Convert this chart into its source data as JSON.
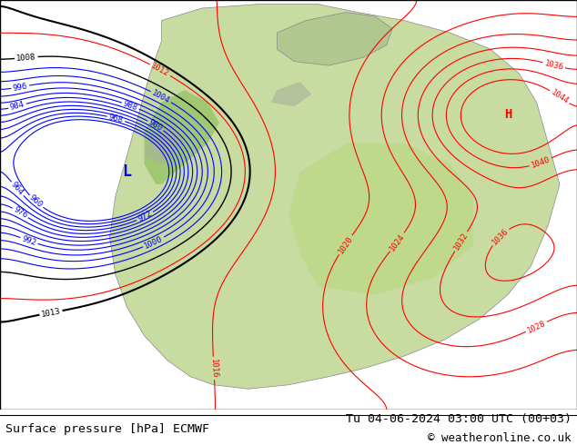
{
  "title_left": "Surface pressure [hPa] ECMWF",
  "title_right": "Tu 04-06-2024 03:00 UTC (00+03)",
  "copyright": "© weatheronline.co.uk",
  "bg_color": "#ffffff",
  "map_bg": "#f0f0f0",
  "font_family": "monospace",
  "bottom_bar_color": "#ffffff",
  "title_font_size": 9.5,
  "copyright_font_size": 9
}
